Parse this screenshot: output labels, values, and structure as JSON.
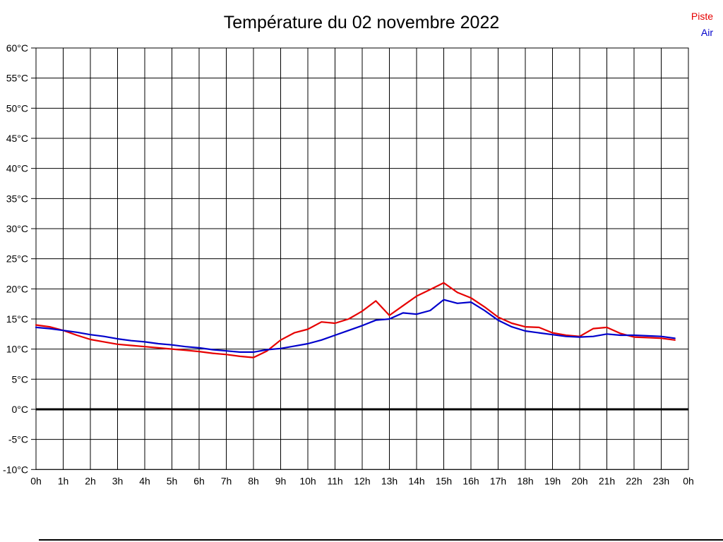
{
  "title": "Température du 02 novembre 2022",
  "legend": {
    "piste_label": "Piste",
    "air_label": "Air"
  },
  "colors": {
    "piste": "#e60000",
    "air": "#0000cc",
    "grid": "#000000",
    "zero_line": "#000000",
    "background": "#ffffff"
  },
  "chart_data": {
    "type": "line",
    "title": "Température du 02 novembre 2022",
    "xlabel": "",
    "ylabel": "",
    "xlim": [
      0,
      24
    ],
    "ylim": [
      -10,
      60
    ],
    "y_step": 5,
    "grid": true,
    "zero_line_thick": true,
    "legend_position": "top-right",
    "x_tick_labels": [
      "0h",
      "1h",
      "2h",
      "3h",
      "4h",
      "5h",
      "6h",
      "7h",
      "8h",
      "9h",
      "10h",
      "11h",
      "12h",
      "13h",
      "14h",
      "15h",
      "16h",
      "17h",
      "18h",
      "19h",
      "20h",
      "21h",
      "22h",
      "23h",
      "0h"
    ],
    "y_tick_labels": [
      "60°C",
      "55°C",
      "50°C",
      "45°C",
      "40°C",
      "35°C",
      "30°C",
      "25°C",
      "20°C",
      "15°C",
      "10°C",
      "5°C",
      "0°C",
      "-5°C",
      "-10°C"
    ],
    "x": [
      0,
      0.5,
      1,
      1.5,
      2,
      2.5,
      3,
      3.5,
      4,
      4.5,
      5,
      5.5,
      6,
      6.5,
      7,
      7.5,
      8,
      8.5,
      9,
      9.5,
      10,
      10.5,
      11,
      11.5,
      12,
      12.5,
      13,
      13.5,
      14,
      14.5,
      15,
      15.5,
      16,
      16.5,
      17,
      17.5,
      18,
      18.5,
      19,
      19.5,
      20,
      20.5,
      21,
      21.5,
      22,
      22.5,
      23,
      23.5
    ],
    "series": [
      {
        "name": "Piste",
        "color": "#e60000",
        "values": [
          14.0,
          13.7,
          13.1,
          12.3,
          11.6,
          11.2,
          10.8,
          10.6,
          10.4,
          10.2,
          10.0,
          9.8,
          9.6,
          9.3,
          9.1,
          8.8,
          8.6,
          9.7,
          11.5,
          12.7,
          13.3,
          14.5,
          14.3,
          15.0,
          16.3,
          18.0,
          15.6,
          17.2,
          18.8,
          19.9,
          21.0,
          19.4,
          18.5,
          17.0,
          15.3,
          14.3,
          13.7,
          13.6,
          12.7,
          12.3,
          12.1,
          13.4,
          13.6,
          12.6,
          12.0,
          11.9,
          11.8,
          11.5
        ]
      },
      {
        "name": "Air",
        "color": "#0000cc",
        "values": [
          13.6,
          13.4,
          13.1,
          12.8,
          12.4,
          12.1,
          11.7,
          11.4,
          11.2,
          10.9,
          10.7,
          10.4,
          10.2,
          9.9,
          9.7,
          9.5,
          9.5,
          9.9,
          10.1,
          10.5,
          10.9,
          11.5,
          12.3,
          13.1,
          13.9,
          14.8,
          15.0,
          16.0,
          15.8,
          16.4,
          18.2,
          17.6,
          17.8,
          16.4,
          14.8,
          13.7,
          13.0,
          12.7,
          12.4,
          12.1,
          12.0,
          12.1,
          12.5,
          12.3,
          12.3,
          12.2,
          12.1,
          11.8
        ]
      }
    ]
  }
}
